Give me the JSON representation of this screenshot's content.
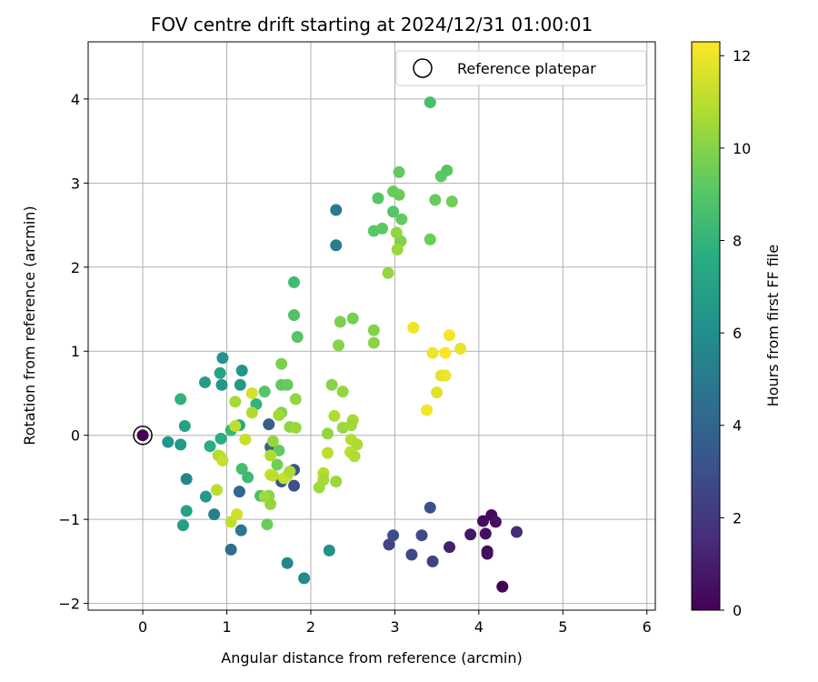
{
  "chart_data": {
    "type": "scatter",
    "title": "FOV centre drift starting at 2024/12/31 01:00:01",
    "xlabel": "Angular distance from reference (arcmin)",
    "ylabel": "Rotation from reference (arcmin)",
    "xlim": [
      -0.65,
      6.1
    ],
    "ylim": [
      -2.08,
      4.68
    ],
    "xticks": [
      0,
      1,
      2,
      3,
      4,
      5,
      6
    ],
    "yticks": [
      -2,
      -1,
      0,
      1,
      2,
      3,
      4
    ],
    "grid": true,
    "legend": {
      "position": "top-right",
      "entries": [
        "Reference platepar"
      ]
    },
    "reference_point": {
      "x": 0,
      "y": 0,
      "hours": 0
    },
    "colorbar": {
      "label": "Hours from first FF file",
      "range": [
        0,
        12.3
      ],
      "ticks": [
        0,
        2,
        4,
        6,
        8,
        10,
        12
      ],
      "colormap": "viridis"
    },
    "points": [
      {
        "x": 4.28,
        "y": -1.8,
        "c": 0.0
      },
      {
        "x": 4.15,
        "y": -0.95,
        "c": 0.3
      },
      {
        "x": 4.05,
        "y": -1.02,
        "c": 0.4
      },
      {
        "x": 4.2,
        "y": -1.03,
        "c": 0.6
      },
      {
        "x": 4.08,
        "y": -1.17,
        "c": 0.5
      },
      {
        "x": 3.9,
        "y": -1.18,
        "c": 0.7
      },
      {
        "x": 4.1,
        "y": -1.38,
        "c": 0.4
      },
      {
        "x": 4.1,
        "y": -1.41,
        "c": 0.5
      },
      {
        "x": 3.65,
        "y": -1.33,
        "c": 1.1
      },
      {
        "x": 4.45,
        "y": -1.15,
        "c": 1.5
      },
      {
        "x": 3.45,
        "y": -1.5,
        "c": 2.4
      },
      {
        "x": 3.2,
        "y": -1.42,
        "c": 2.6
      },
      {
        "x": 3.32,
        "y": -1.19,
        "c": 2.8
      },
      {
        "x": 2.98,
        "y": -1.19,
        "c": 2.9
      },
      {
        "x": 2.93,
        "y": -1.3,
        "c": 2.5
      },
      {
        "x": 3.42,
        "y": -0.86,
        "c": 3.0
      },
      {
        "x": 1.8,
        "y": -0.6,
        "c": 3.0
      },
      {
        "x": 1.8,
        "y": -0.41,
        "c": 3.2
      },
      {
        "x": 1.65,
        "y": -0.55,
        "c": 3.5
      },
      {
        "x": 1.5,
        "y": 0.13,
        "c": 3.6
      },
      {
        "x": 1.52,
        "y": -0.14,
        "c": 3.8
      },
      {
        "x": 1.15,
        "y": -0.67,
        "c": 4.2
      },
      {
        "x": 1.05,
        "y": -1.36,
        "c": 4.4
      },
      {
        "x": 1.17,
        "y": -1.13,
        "c": 4.8
      },
      {
        "x": 0.85,
        "y": -0.94,
        "c": 5.3
      },
      {
        "x": 0.52,
        "y": -0.52,
        "c": 5.5
      },
      {
        "x": 1.72,
        "y": -1.52,
        "c": 5.6
      },
      {
        "x": 1.92,
        "y": -1.7,
        "c": 5.8
      },
      {
        "x": 2.22,
        "y": -1.37,
        "c": 6.2
      },
      {
        "x": 2.3,
        "y": 2.68,
        "c": 5.0
      },
      {
        "x": 2.3,
        "y": 2.26,
        "c": 5.2
      },
      {
        "x": 0.95,
        "y": 0.92,
        "c": 6.3
      },
      {
        "x": 0.94,
        "y": 0.6,
        "c": 6.5
      },
      {
        "x": 1.18,
        "y": 0.77,
        "c": 6.4
      },
      {
        "x": 1.16,
        "y": 0.6,
        "c": 6.6
      },
      {
        "x": 0.74,
        "y": 0.63,
        "c": 6.8
      },
      {
        "x": 0.3,
        "y": -0.08,
        "c": 6.4
      },
      {
        "x": 0.45,
        "y": -0.11,
        "c": 6.6
      },
      {
        "x": 0.48,
        "y": -1.07,
        "c": 6.9
      },
      {
        "x": 0.52,
        "y": -0.9,
        "c": 7.0
      },
      {
        "x": 0.75,
        "y": -0.73,
        "c": 6.6
      },
      {
        "x": 0.5,
        "y": 0.11,
        "c": 7.0
      },
      {
        "x": 1.15,
        "y": 0.12,
        "c": 7.4
      },
      {
        "x": 0.92,
        "y": 0.74,
        "c": 7.2
      },
      {
        "x": 0.8,
        "y": -0.13,
        "c": 7.6
      },
      {
        "x": 0.93,
        "y": -0.04,
        "c": 7.7
      },
      {
        "x": 0.45,
        "y": 0.43,
        "c": 7.9
      },
      {
        "x": 1.05,
        "y": 0.06,
        "c": 8.2
      },
      {
        "x": 1.35,
        "y": 0.37,
        "c": 8.0
      },
      {
        "x": 1.25,
        "y": -0.5,
        "c": 8.3
      },
      {
        "x": 1.18,
        "y": -0.4,
        "c": 8.5
      },
      {
        "x": 1.4,
        "y": -0.72,
        "c": 8.6
      },
      {
        "x": 1.8,
        "y": 1.82,
        "c": 8.4
      },
      {
        "x": 1.8,
        "y": 1.43,
        "c": 8.8
      },
      {
        "x": 1.84,
        "y": 1.17,
        "c": 9.0
      },
      {
        "x": 1.65,
        "y": 0.6,
        "c": 9.2
      },
      {
        "x": 1.72,
        "y": 0.6,
        "c": 9.4
      },
      {
        "x": 1.62,
        "y": -0.18,
        "c": 9.3
      },
      {
        "x": 1.6,
        "y": -0.35,
        "c": 9.6
      },
      {
        "x": 1.48,
        "y": -1.06,
        "c": 9.5
      },
      {
        "x": 1.45,
        "y": 0.52,
        "c": 9.0
      },
      {
        "x": 3.42,
        "y": 3.96,
        "c": 8.6
      },
      {
        "x": 2.8,
        "y": 2.82,
        "c": 9.0
      },
      {
        "x": 2.75,
        "y": 2.43,
        "c": 9.1
      },
      {
        "x": 2.85,
        "y": 2.46,
        "c": 9.2
      },
      {
        "x": 2.98,
        "y": 2.66,
        "c": 9.0
      },
      {
        "x": 3.08,
        "y": 2.57,
        "c": 9.3
      },
      {
        "x": 2.98,
        "y": 2.9,
        "c": 9.4
      },
      {
        "x": 3.05,
        "y": 2.86,
        "c": 9.5
      },
      {
        "x": 3.05,
        "y": 3.13,
        "c": 9.3
      },
      {
        "x": 3.55,
        "y": 3.08,
        "c": 9.2
      },
      {
        "x": 3.62,
        "y": 3.15,
        "c": 9.0
      },
      {
        "x": 3.48,
        "y": 2.8,
        "c": 9.4
      },
      {
        "x": 3.68,
        "y": 2.78,
        "c": 9.6
      },
      {
        "x": 3.42,
        "y": 2.33,
        "c": 9.5
      },
      {
        "x": 3.07,
        "y": 2.31,
        "c": 9.9
      },
      {
        "x": 3.02,
        "y": 2.41,
        "c": 10.2
      },
      {
        "x": 3.03,
        "y": 2.21,
        "c": 10.4
      },
      {
        "x": 2.92,
        "y": 1.93,
        "c": 10.3
      },
      {
        "x": 2.35,
        "y": 1.35,
        "c": 9.8
      },
      {
        "x": 2.5,
        "y": 1.39,
        "c": 9.7
      },
      {
        "x": 2.33,
        "y": 1.07,
        "c": 10.0
      },
      {
        "x": 2.75,
        "y": 1.25,
        "c": 9.9
      },
      {
        "x": 2.75,
        "y": 1.1,
        "c": 10.1
      },
      {
        "x": 2.25,
        "y": 0.6,
        "c": 10.0
      },
      {
        "x": 2.38,
        "y": 0.52,
        "c": 10.3
      },
      {
        "x": 2.28,
        "y": 0.23,
        "c": 10.8
      },
      {
        "x": 2.2,
        "y": 0.02,
        "c": 10.2
      },
      {
        "x": 2.38,
        "y": 0.09,
        "c": 10.4
      },
      {
        "x": 2.5,
        "y": 0.18,
        "c": 10.6
      },
      {
        "x": 2.48,
        "y": 0.12,
        "c": 10.5
      },
      {
        "x": 2.48,
        "y": -0.05,
        "c": 10.9
      },
      {
        "x": 2.55,
        "y": -0.11,
        "c": 10.7
      },
      {
        "x": 2.47,
        "y": -0.2,
        "c": 11.0
      },
      {
        "x": 2.52,
        "y": -0.25,
        "c": 10.8
      },
      {
        "x": 2.2,
        "y": -0.21,
        "c": 11.0
      },
      {
        "x": 2.15,
        "y": -0.45,
        "c": 10.9
      },
      {
        "x": 2.15,
        "y": -0.53,
        "c": 10.6
      },
      {
        "x": 2.3,
        "y": -0.55,
        "c": 10.4
      },
      {
        "x": 2.1,
        "y": -0.62,
        "c": 10.5
      },
      {
        "x": 1.82,
        "y": 0.43,
        "c": 10.2
      },
      {
        "x": 1.65,
        "y": 0.85,
        "c": 9.8
      },
      {
        "x": 1.65,
        "y": 0.27,
        "c": 9.9
      },
      {
        "x": 1.75,
        "y": 0.1,
        "c": 10.2
      },
      {
        "x": 1.82,
        "y": 0.09,
        "c": 10.4
      },
      {
        "x": 1.62,
        "y": 0.24,
        "c": 10.5
      },
      {
        "x": 1.55,
        "y": -0.07,
        "c": 10.3
      },
      {
        "x": 1.52,
        "y": -0.24,
        "c": 10.8
      },
      {
        "x": 1.52,
        "y": -0.47,
        "c": 11.3
      },
      {
        "x": 1.55,
        "y": -0.48,
        "c": 11.0
      },
      {
        "x": 1.72,
        "y": -0.48,
        "c": 11.0
      },
      {
        "x": 1.68,
        "y": -0.51,
        "c": 11.2
      },
      {
        "x": 1.75,
        "y": -0.43,
        "c": 10.7
      },
      {
        "x": 1.52,
        "y": -0.82,
        "c": 10.3
      },
      {
        "x": 1.5,
        "y": -0.72,
        "c": 10.1
      },
      {
        "x": 1.3,
        "y": 0.27,
        "c": 10.8
      },
      {
        "x": 1.3,
        "y": 0.5,
        "c": 11.5
      },
      {
        "x": 1.1,
        "y": 0.4,
        "c": 10.6
      },
      {
        "x": 1.1,
        "y": 0.11,
        "c": 11.1
      },
      {
        "x": 1.22,
        "y": -0.05,
        "c": 11.3
      },
      {
        "x": 0.9,
        "y": -0.24,
        "c": 10.7
      },
      {
        "x": 0.92,
        "y": -0.25,
        "c": 10.9
      },
      {
        "x": 0.95,
        "y": -0.3,
        "c": 11.2
      },
      {
        "x": 0.88,
        "y": -0.65,
        "c": 11.0
      },
      {
        "x": 1.05,
        "y": -1.03,
        "c": 11.1
      },
      {
        "x": 1.12,
        "y": -0.94,
        "c": 11.4
      },
      {
        "x": 1.45,
        "y": -0.73,
        "c": 10.5
      },
      {
        "x": 3.22,
        "y": 1.28,
        "c": 12.0
      },
      {
        "x": 3.65,
        "y": 1.19,
        "c": 12.1
      },
      {
        "x": 3.78,
        "y": 1.03,
        "c": 11.9
      },
      {
        "x": 3.45,
        "y": 0.98,
        "c": 12.0
      },
      {
        "x": 3.6,
        "y": 0.98,
        "c": 12.2
      },
      {
        "x": 3.55,
        "y": 0.71,
        "c": 11.8
      },
      {
        "x": 3.6,
        "y": 0.71,
        "c": 12.0
      },
      {
        "x": 3.5,
        "y": 0.51,
        "c": 11.7
      },
      {
        "x": 3.38,
        "y": 0.3,
        "c": 12.1
      }
    ]
  }
}
